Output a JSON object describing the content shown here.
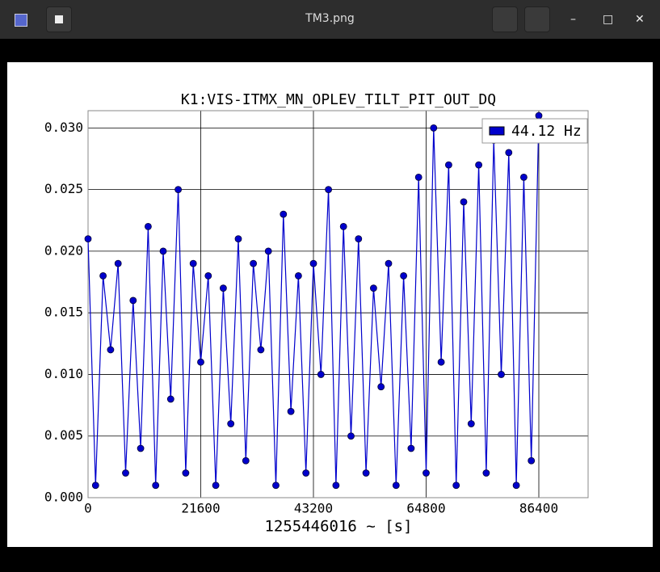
{
  "window": {
    "title": "TM3.png"
  },
  "chart_data": {
    "type": "line",
    "title": "K1:VIS-ITMX_MN_OPLEV_TILT_PIT_OUT_DQ",
    "x_label": "1255446016 ~ [s]",
    "xlim": [
      0,
      95845
    ],
    "ylim": [
      0,
      0.0314
    ],
    "xticks": [
      0,
      21600,
      43200,
      64800,
      86400
    ],
    "yticks": [
      {
        "value": 0,
        "label": "0.000"
      },
      {
        "value": 0.005,
        "label": "0.005"
      },
      {
        "value": 0.01,
        "label": "0.010"
      },
      {
        "value": 0.015,
        "label": "0.015"
      },
      {
        "value": 0.02,
        "label": "0.020"
      },
      {
        "value": 0.025,
        "label": "0.025"
      },
      {
        "value": 0.03,
        "label": "0.030"
      }
    ],
    "grid": true,
    "legend": "upper right",
    "series": [
      {
        "name": "44.12 Hz",
        "color": "#0000cc",
        "x": [
          0,
          1440,
          2880,
          4320,
          5760,
          7200,
          8640,
          10080,
          11520,
          12960,
          14400,
          15840,
          17280,
          18720,
          20160,
          21600,
          23040,
          24480,
          25920,
          27360,
          28800,
          30240,
          31680,
          33120,
          34560,
          36000,
          37440,
          38880,
          40320,
          41760,
          43200,
          44640,
          46080,
          47520,
          48960,
          50400,
          51840,
          53280,
          54720,
          56160,
          57600,
          59040,
          60480,
          61920,
          63360,
          64800,
          66240,
          67680,
          69120,
          70560,
          72000,
          73440,
          74880,
          76320,
          77760,
          79200,
          80640,
          82080,
          83520,
          84960,
          86400
        ],
        "values": [
          0.021,
          0.001,
          0.018,
          0.012,
          0.019,
          0.002,
          0.016,
          0.004,
          0.022,
          0.001,
          0.02,
          0.008,
          0.025,
          0.002,
          0.019,
          0.011,
          0.018,
          0.001,
          0.017,
          0.006,
          0.021,
          0.003,
          0.019,
          0.012,
          0.02,
          0.001,
          0.023,
          0.007,
          0.018,
          0.002,
          0.019,
          0.01,
          0.025,
          0.001,
          0.022,
          0.005,
          0.021,
          0.002,
          0.017,
          0.009,
          0.019,
          0.001,
          0.018,
          0.004,
          0.026,
          0.002,
          0.03,
          0.011,
          0.027,
          0.001,
          0.024,
          0.006,
          0.027,
          0.002,
          0.029,
          0.01,
          0.028,
          0.001,
          0.026,
          0.003,
          0.031
        ]
      }
    ]
  }
}
